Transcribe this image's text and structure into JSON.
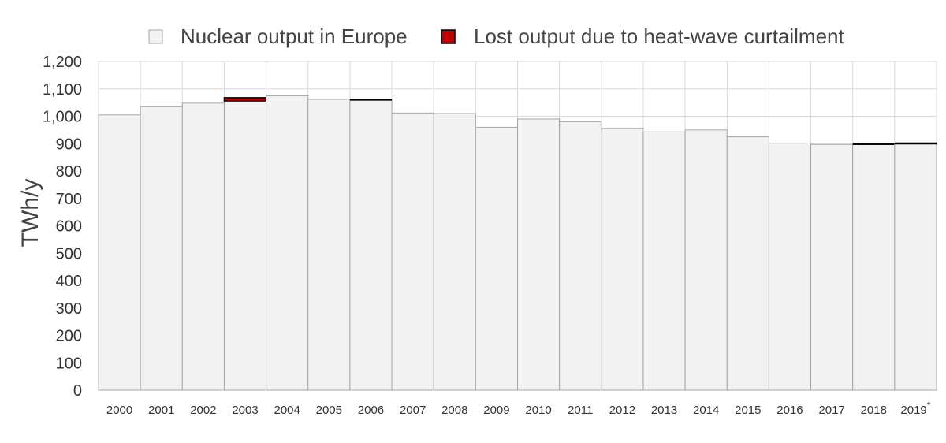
{
  "chart_data": {
    "type": "bar",
    "title": "",
    "xlabel": "",
    "ylabel": "TWh/y",
    "ylim": [
      0,
      1200
    ],
    "yticks": [
      0,
      100,
      200,
      300,
      400,
      500,
      600,
      700,
      800,
      900,
      1000,
      1100,
      1200
    ],
    "ytick_labels": [
      "0",
      "100",
      "200",
      "300",
      "400",
      "500",
      "600",
      "700",
      "800",
      "900",
      "1,000",
      "1,100",
      "1,200"
    ],
    "grid": true,
    "legend_position": "top",
    "categories": [
      "2000",
      "2001",
      "2002",
      "2003",
      "2004",
      "2005",
      "2006",
      "2007",
      "2008",
      "2009",
      "2010",
      "2011",
      "2012",
      "2013",
      "2014",
      "2015",
      "2016",
      "2017",
      "2018",
      "2019"
    ],
    "category_marks": [
      "",
      "",
      "",
      "",
      "",
      "",
      "",
      "",
      "",
      "",
      "",
      "",
      "",
      "",
      "",
      "",
      "",
      "",
      "",
      "*"
    ],
    "series": [
      {
        "name": "Nuclear output in Europe",
        "color": "#f2f2f2",
        "values": [
          1005,
          1035,
          1048,
          1056,
          1075,
          1062,
          1060,
          1012,
          1010,
          960,
          990,
          980,
          955,
          943,
          950,
          925,
          902,
          897,
          898,
          900
        ]
      },
      {
        "name": "Lost output due to heat-wave curtailment",
        "color": "#c00000",
        "values": [
          0,
          0,
          0,
          12,
          0,
          0,
          3,
          0,
          0,
          0,
          0,
          0,
          0,
          0,
          0,
          0,
          0,
          0,
          2,
          2
        ]
      }
    ]
  },
  "colors": {
    "bar_fill": "#f2f2f2",
    "bar_stroke": "#a6a6a6",
    "lost_fill": "#c00000",
    "lost_stroke": "#000000",
    "grid": "#d9d9d9"
  }
}
